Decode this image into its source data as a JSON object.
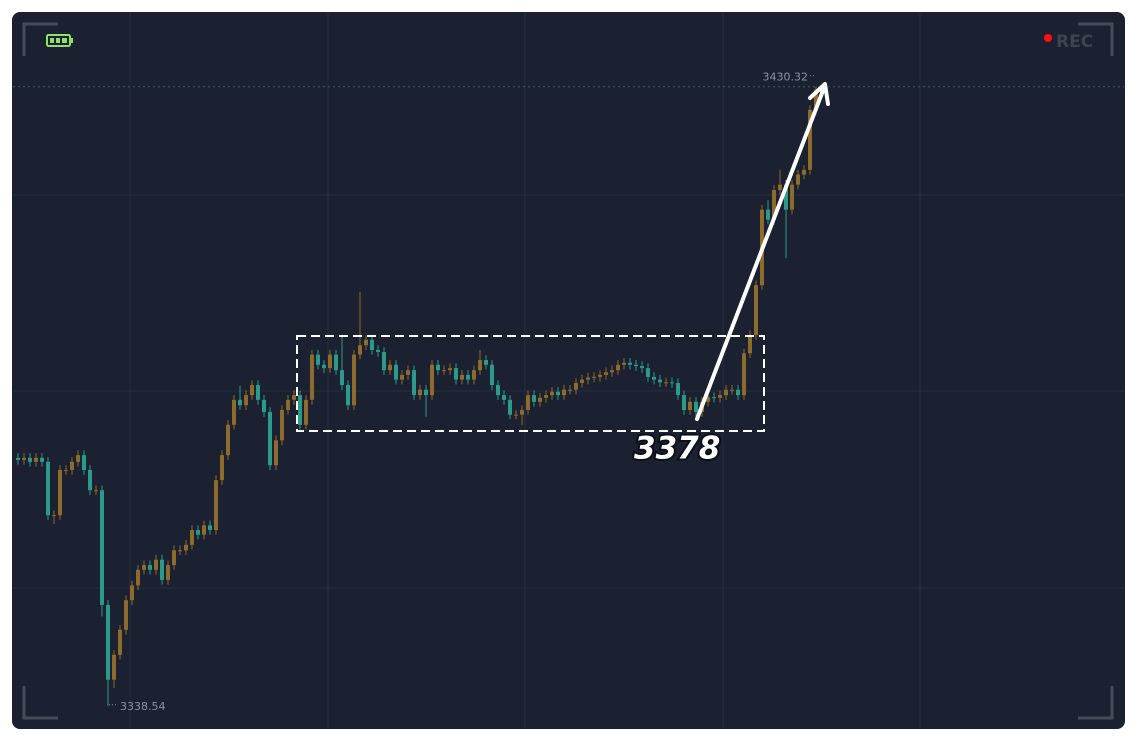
{
  "recording": {
    "label": "REC"
  },
  "chart_data": {
    "type": "candlestick",
    "up_color": "#8c6b2c",
    "down_color": "#2b9a8a",
    "ylim": [
      3335.1,
      3441.4
    ],
    "grid": true,
    "annotations": [
      {
        "text": "3378"
      }
    ],
    "open": [
      3375.3,
      3375.0,
      3375.3,
      3374.7,
      3375.3,
      3374.7,
      3366.8,
      3366.8,
      3373.5,
      3373.5,
      3374.7,
      3375.7,
      3373.5,
      3370.5,
      3370.5,
      3353.5,
      3342.4,
      3346.1,
      3349.8,
      3354.2,
      3356.4,
      3358.7,
      3359.4,
      3358.7,
      3360.2,
      3357.2,
      3359.4,
      3361.6,
      3361.6,
      3362.4,
      3364.6,
      3363.9,
      3365.3,
      3364.6,
      3372.0,
      3375.7,
      3380.2,
      3383.9,
      3383.1,
      3384.6,
      3386.1,
      3383.9,
      3382.1,
      3374.2,
      3377.9,
      3382.4,
      3383.9,
      3384.6,
      3380.2,
      3383.9,
      3390.6,
      3389.1,
      3388.6,
      3390.6,
      3388.3,
      3386.1,
      3383.1,
      3390.6,
      3392.0,
      3392.8,
      3391.3,
      3391.0,
      3388.3,
      3389.1,
      3386.9,
      3387.6,
      3388.3,
      3384.6,
      3385.4,
      3384.6,
      3389.1,
      3388.3,
      3388.3,
      3388.6,
      3386.9,
      3387.6,
      3386.9,
      3388.3,
      3389.8,
      3389.1,
      3386.1,
      3384.6,
      3383.9,
      3381.7,
      3381.7,
      3382.4,
      3384.6,
      3383.6,
      3384.2,
      3384.6,
      3385.1,
      3384.6,
      3385.4,
      3385.4,
      3386.4,
      3386.9,
      3387.2,
      3387.3,
      3387.6,
      3388.0,
      3388.3,
      3389.1,
      3389.4,
      3389.1,
      3388.9,
      3388.6,
      3387.3,
      3386.9,
      3386.5,
      3386.5,
      3386.4,
      3384.6,
      3382.4,
      3383.6,
      3382.1,
      3383.6,
      3384.3,
      3384.2,
      3384.6,
      3385.4,
      3385.4,
      3384.6,
      3390.8,
      3393.5,
      3400.9,
      3412.1,
      3410.6,
      3415.0,
      3415.8,
      3412.1,
      3415.8,
      3417.3,
      3418.0,
      3426.9,
      3429.9
    ],
    "high": [
      3376.0,
      3376.0,
      3376.0,
      3376.0,
      3376.0,
      3375.4,
      3367.5,
      3374.2,
      3374.2,
      3375.4,
      3376.4,
      3376.4,
      3374.2,
      3371.2,
      3371.2,
      3354.2,
      3346.8,
      3350.5,
      3354.9,
      3357.1,
      3359.4,
      3360.1,
      3360.1,
      3360.9,
      3360.9,
      3360.1,
      3362.3,
      3362.3,
      3363.1,
      3365.3,
      3365.3,
      3366.0,
      3366.0,
      3372.7,
      3376.4,
      3380.9,
      3384.6,
      3386.0,
      3385.3,
      3386.8,
      3386.8,
      3384.6,
      3382.8,
      3378.6,
      3383.1,
      3384.6,
      3385.3,
      3385.3,
      3384.6,
      3391.3,
      3391.3,
      3389.8,
      3391.3,
      3391.3,
      3393.5,
      3386.8,
      3391.3,
      3399.9,
      3393.5,
      3393.5,
      3392.0,
      3391.7,
      3389.8,
      3389.8,
      3388.3,
      3389.0,
      3389.0,
      3386.1,
      3386.1,
      3389.8,
      3389.8,
      3389.0,
      3389.3,
      3389.3,
      3388.3,
      3388.3,
      3389.0,
      3391.3,
      3390.5,
      3389.8,
      3386.8,
      3385.3,
      3384.6,
      3382.4,
      3383.1,
      3385.3,
      3385.3,
      3384.9,
      3385.3,
      3385.8,
      3385.8,
      3386.1,
      3386.1,
      3387.1,
      3387.6,
      3387.9,
      3388.0,
      3388.3,
      3388.7,
      3389.0,
      3389.8,
      3390.1,
      3390.1,
      3389.8,
      3389.6,
      3389.3,
      3388.0,
      3387.6,
      3387.2,
      3387.2,
      3387.1,
      3385.3,
      3384.3,
      3384.3,
      3384.3,
      3385.0,
      3385.0,
      3385.3,
      3386.1,
      3386.1,
      3386.1,
      3391.5,
      3394.2,
      3401.6,
      3412.8,
      3413.5,
      3415.7,
      3418.0,
      3416.5,
      3416.5,
      3418.0,
      3418.7,
      3427.6,
      3430.32,
      3430.1
    ],
    "low": [
      3374.3,
      3374.3,
      3374.0,
      3374.0,
      3374.0,
      3366.1,
      3365.5,
      3366.1,
      3372.8,
      3372.8,
      3374.0,
      3372.8,
      3369.8,
      3369.8,
      3351.8,
      3338.54,
      3341.2,
      3345.4,
      3349.1,
      3353.5,
      3355.7,
      3358.0,
      3358.0,
      3358.0,
      3356.5,
      3356.5,
      3358.7,
      3360.9,
      3360.9,
      3361.7,
      3363.2,
      3363.2,
      3363.9,
      3363.9,
      3371.3,
      3375.0,
      3379.5,
      3382.4,
      3382.4,
      3383.9,
      3383.2,
      3381.4,
      3373.5,
      3373.5,
      3377.2,
      3381.7,
      3383.2,
      3379.5,
      3379.5,
      3383.2,
      3388.4,
      3387.9,
      3387.9,
      3387.6,
      3385.4,
      3382.4,
      3382.4,
      3389.9,
      3391.3,
      3390.6,
      3390.3,
      3387.6,
      3387.6,
      3386.2,
      3386.2,
      3386.9,
      3383.9,
      3383.9,
      3381.4,
      3383.9,
      3387.6,
      3387.6,
      3387.6,
      3386.2,
      3386.2,
      3386.2,
      3386.2,
      3387.6,
      3388.4,
      3385.4,
      3383.9,
      3383.2,
      3381.0,
      3381.0,
      3380.2,
      3381.7,
      3382.9,
      3382.9,
      3383.5,
      3383.9,
      3383.9,
      3383.9,
      3384.7,
      3384.7,
      3385.7,
      3386.2,
      3386.5,
      3386.6,
      3386.9,
      3387.3,
      3387.6,
      3388.4,
      3388.4,
      3388.2,
      3387.9,
      3386.6,
      3386.2,
      3385.8,
      3385.8,
      3385.7,
      3383.9,
      3381.7,
      3381.7,
      3381.4,
      3381.4,
      3382.9,
      3383.5,
      3383.5,
      3383.9,
      3384.7,
      3383.9,
      3383.9,
      3390.1,
      3392.8,
      3400.2,
      3409.9,
      3409.9,
      3414.3,
      3404.9,
      3411.4,
      3415.1,
      3416.6,
      3417.3,
      3426.2,
      3428.7
    ],
    "close": [
      3375.0,
      3375.3,
      3374.7,
      3375.3,
      3374.7,
      3366.8,
      3366.8,
      3373.5,
      3373.5,
      3374.7,
      3375.7,
      3373.5,
      3370.5,
      3370.5,
      3353.5,
      3342.4,
      3346.1,
      3349.8,
      3354.2,
      3356.4,
      3358.7,
      3359.4,
      3358.7,
      3360.2,
      3357.2,
      3359.4,
      3361.6,
      3361.6,
      3362.4,
      3364.6,
      3363.9,
      3365.3,
      3364.6,
      3372.0,
      3375.7,
      3380.2,
      3383.9,
      3383.1,
      3384.6,
      3386.1,
      3383.9,
      3382.1,
      3374.2,
      3377.9,
      3382.4,
      3383.9,
      3384.6,
      3380.2,
      3383.9,
      3390.6,
      3389.1,
      3388.6,
      3390.6,
      3388.3,
      3386.1,
      3383.1,
      3390.6,
      3392.0,
      3392.8,
      3391.3,
      3391.0,
      3388.3,
      3389.1,
      3386.9,
      3387.6,
      3388.3,
      3384.6,
      3385.4,
      3384.6,
      3389.1,
      3388.3,
      3388.3,
      3388.6,
      3386.9,
      3387.6,
      3386.9,
      3388.3,
      3389.8,
      3389.1,
      3386.1,
      3384.6,
      3383.9,
      3381.7,
      3381.7,
      3382.4,
      3384.6,
      3383.6,
      3384.2,
      3384.6,
      3385.1,
      3384.6,
      3385.4,
      3385.4,
      3386.4,
      3386.9,
      3387.2,
      3387.3,
      3387.6,
      3388.0,
      3388.3,
      3389.1,
      3389.4,
      3389.1,
      3388.9,
      3388.6,
      3387.3,
      3386.9,
      3386.5,
      3386.5,
      3386.4,
      3384.6,
      3382.4,
      3383.6,
      3382.1,
      3383.6,
      3384.3,
      3384.2,
      3384.6,
      3385.4,
      3385.4,
      3384.6,
      3390.8,
      3393.5,
      3400.9,
      3412.1,
      3410.6,
      3415.0,
      3415.8,
      3412.1,
      3415.8,
      3417.3,
      3418.0,
      3426.9,
      3429.9,
      3429.4
    ]
  }
}
